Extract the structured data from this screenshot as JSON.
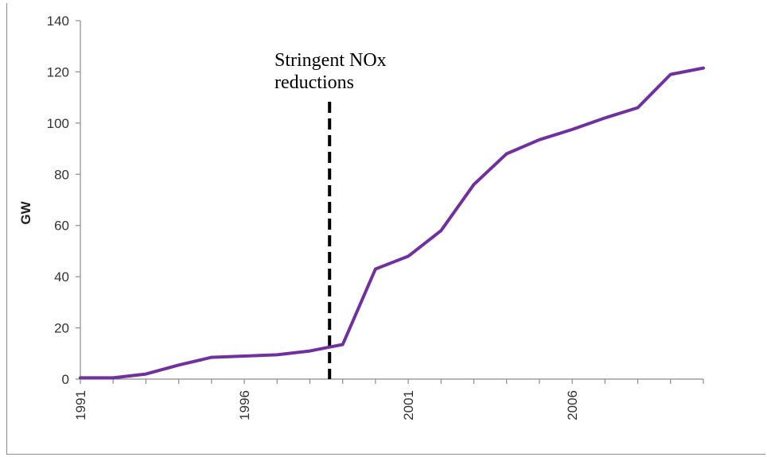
{
  "chart_data": {
    "type": "line",
    "title": "",
    "xlabel": "",
    "ylabel": "GW",
    "xlim": [
      1991,
      2010
    ],
    "ylim": [
      0,
      140
    ],
    "y_ticks": [
      0,
      20,
      40,
      60,
      80,
      100,
      120,
      140
    ],
    "x_ticks": [
      1991,
      1996,
      2001,
      2006
    ],
    "grid": false,
    "line_color": "#7030a0",
    "x": [
      1991,
      1992,
      1993,
      1994,
      1995,
      1996,
      1997,
      1998,
      1998.6,
      1999,
      2000,
      2001,
      2002,
      2003,
      2004,
      2005,
      2006,
      2007,
      2008,
      2009,
      2010
    ],
    "values": [
      0.5,
      0.5,
      2,
      5.5,
      8.5,
      9,
      9.5,
      11,
      12.5,
      13.5,
      43,
      48,
      58,
      76,
      88,
      93.5,
      97.5,
      102,
      106,
      119,
      121.5
    ],
    "annotation": {
      "lines": [
        "Stringent NOx",
        "reductions"
      ],
      "x": 1998.6,
      "style": "dashed vertical line",
      "color": "#000000"
    }
  }
}
